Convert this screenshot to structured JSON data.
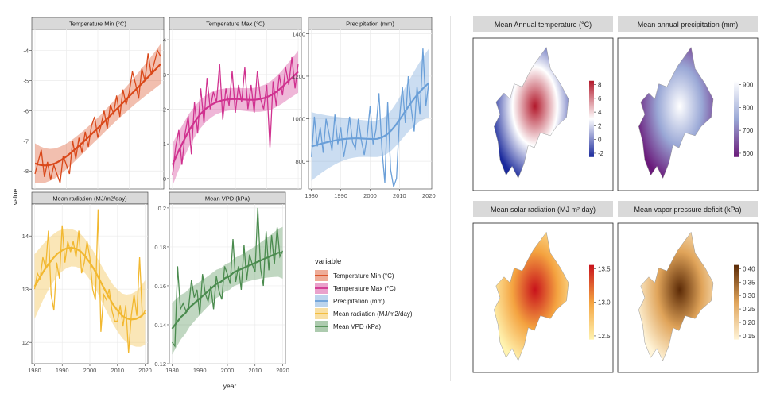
{
  "left_figure": {
    "ylabel": "value",
    "xlabel": "year",
    "legend_title": "variable"
  },
  "right_figure": {
    "maps": [
      {
        "title": "Mean Annual temperature (°C)",
        "palette": "blue-white-red",
        "colorbar_ticks": [
          "8",
          "6",
          "4",
          "2",
          "0",
          "-2"
        ]
      },
      {
        "title": "Mean annual precipitation (mm)",
        "palette": "purple-white",
        "colorbar_ticks": [
          "900",
          "800",
          "700",
          "600"
        ]
      },
      {
        "title": "Mean solar radiation (MJ m² day)",
        "palette": "yellow-red",
        "colorbar_ticks": [
          "13.5",
          "13.0",
          "12.5"
        ]
      },
      {
        "title": "Mean vapor pressure deficit (kPa)",
        "palette": "cream-brown",
        "colorbar_ticks": [
          "0.40",
          "0.35",
          "0.30",
          "0.25",
          "0.20",
          "0.15"
        ]
      }
    ]
  },
  "chart_data": [
    {
      "type": "line",
      "title": "Temperature Min (°C)",
      "color": "#d9481a",
      "xlim": [
        1979,
        2021
      ],
      "ylim": [
        -8.6,
        -3.3
      ],
      "yticks": [
        -8,
        -7,
        -6,
        -5,
        -4
      ],
      "xticks": [
        1980,
        1990,
        2000,
        2010,
        2020
      ],
      "x": [
        1980,
        1981,
        1982,
        1983,
        1984,
        1985,
        1986,
        1987,
        1988,
        1989,
        1990,
        1991,
        1992,
        1993,
        1994,
        1995,
        1996,
        1997,
        1998,
        1999,
        2000,
        2001,
        2002,
        2003,
        2004,
        2005,
        2006,
        2007,
        2008,
        2009,
        2010,
        2011,
        2012,
        2013,
        2014,
        2015,
        2016,
        2017,
        2018,
        2019,
        2020
      ],
      "y": [
        -8.1,
        -7.7,
        -7.3,
        -8.2,
        -7.7,
        -8.3,
        -7.8,
        -8.1,
        -8.4,
        -7.5,
        -7.8,
        -8.1,
        -7.0,
        -7.6,
        -6.9,
        -7.4,
        -6.7,
        -7.2,
        -6.5,
        -6.2,
        -6.9,
        -6.5,
        -6.0,
        -6.6,
        -5.8,
        -6.1,
        -5.5,
        -6.2,
        -5.3,
        -5.8,
        -5.4,
        -4.7,
        -5.1,
        -5.6,
        -4.6,
        -5.0,
        -4.1,
        -4.8,
        -4.4,
        -4.0,
        -4.2
      ],
      "smooth": [
        -7.75,
        -7.8,
        -7.82,
        -7.8,
        -7.75,
        -7.66,
        -7.55,
        -7.42,
        -7.28,
        -7.13,
        -6.98,
        -6.82,
        -6.66,
        -6.5,
        -6.33,
        -6.16,
        -5.99,
        -5.82,
        -5.65,
        -5.48,
        -5.31,
        -5.14,
        -4.97,
        -4.8,
        -4.63,
        -4.45
      ],
      "smooth_x": [
        1980,
        1981.6,
        1983.2,
        1984.8,
        1986.4,
        1988,
        1989.6,
        1991.2,
        1992.8,
        1994.4,
        1996,
        1997.6,
        1999.2,
        2000.8,
        2002.4,
        2004,
        2005.6,
        2007.2,
        2008.8,
        2010.4,
        2012,
        2013.6,
        2015.2,
        2016.8,
        2018.4,
        2020
      ],
      "band": 0.35
    },
    {
      "type": "line",
      "title": "Temperature Max (°C)",
      "color": "#d0318f",
      "xlim": [
        1979,
        2021
      ],
      "ylim": [
        -0.3,
        4.3
      ],
      "yticks": [
        0,
        1,
        2,
        3,
        4
      ],
      "xticks": [
        1980,
        1990,
        2000,
        2010,
        2020
      ],
      "x": [
        1980,
        1981,
        1982,
        1983,
        1984,
        1985,
        1986,
        1987,
        1988,
        1989,
        1990,
        1991,
        1992,
        1993,
        1994,
        1995,
        1996,
        1997,
        1998,
        1999,
        2000,
        2001,
        2002,
        2003,
        2004,
        2005,
        2006,
        2007,
        2008,
        2009,
        2010,
        2011,
        2012,
        2013,
        2014,
        2015,
        2016,
        2017,
        2018,
        2019,
        2020
      ],
      "y": [
        0.1,
        0.9,
        1.4,
        0.4,
        1.3,
        1.8,
        0.7,
        2.2,
        1.3,
        2.6,
        1.6,
        2.9,
        2.0,
        2.5,
        2.2,
        3.3,
        1.7,
        2.6,
        2.1,
        3.1,
        1.9,
        2.7,
        2.2,
        3.2,
        2.0,
        2.7,
        1.9,
        3.1,
        2.3,
        2.0,
        2.7,
        0.9,
        2.8,
        2.1,
        3.0,
        2.4,
        3.2,
        2.7,
        3.5,
        2.6,
        3.3
      ],
      "smooth": [
        0.4,
        0.75,
        1.08,
        1.38,
        1.63,
        1.84,
        2.0,
        2.12,
        2.2,
        2.25,
        2.28,
        2.29,
        2.29,
        2.28,
        2.27,
        2.27,
        2.29,
        2.33,
        2.4,
        2.5,
        2.63,
        2.78,
        2.93,
        3.08
      ],
      "smooth_x": [
        1980,
        1981.7,
        1983.5,
        1985.2,
        1987,
        1988.7,
        1990.4,
        1992.2,
        1993.9,
        1995.7,
        1997.4,
        1999.1,
        2000.9,
        2002.6,
        2004.3,
        2006.1,
        2007.8,
        2009.6,
        2011.3,
        2013,
        2014.8,
        2016.5,
        2018.3,
        2020
      ],
      "band": 0.32
    },
    {
      "type": "line",
      "title": "Precipitation (mm)",
      "color": "#6a9fd8",
      "xlim": [
        1979,
        2021
      ],
      "ylim": [
        670,
        1420
      ],
      "yticks": [
        800,
        1000,
        1200,
        1400
      ],
      "xticks": [
        1980,
        1990,
        2000,
        2010,
        2020
      ],
      "x": [
        1980,
        1981,
        1982,
        1983,
        1984,
        1985,
        1986,
        1987,
        1988,
        1989,
        1990,
        1991,
        1992,
        1993,
        1994,
        1995,
        1996,
        1997,
        1998,
        1999,
        2000,
        2001,
        2002,
        2003,
        2004,
        2005,
        2006,
        2007,
        2008,
        2009,
        2010,
        2011,
        2012,
        2013,
        2014,
        2015,
        2016,
        2017,
        2018,
        2019,
        2020
      ],
      "y": [
        820,
        1010,
        870,
        960,
        840,
        1000,
        930,
        850,
        1020,
        880,
        960,
        820,
        900,
        1010,
        890,
        860,
        1000,
        900,
        830,
        920,
        1060,
        880,
        950,
        1120,
        860,
        700,
        1080,
        760,
        680,
        720,
        1000,
        1150,
        980,
        1200,
        1050,
        940,
        1150,
        1020,
        1330,
        1060,
        1170
      ],
      "smooth": [
        870,
        876,
        882,
        888,
        893,
        898,
        902,
        905,
        907,
        908,
        908,
        907,
        906,
        905,
        906,
        912,
        925,
        945,
        972,
        1003,
        1036,
        1068,
        1098,
        1125,
        1148,
        1168
      ],
      "smooth_x": [
        1980,
        1981.6,
        1983.2,
        1984.8,
        1986.4,
        1988,
        1989.6,
        1991.2,
        1992.8,
        1994.4,
        1996,
        1997.6,
        1999.2,
        2000.8,
        2002.4,
        2004,
        2005.6,
        2007.2,
        2008.8,
        2010.4,
        2012,
        2013.6,
        2015.2,
        2016.8,
        2018.4,
        2020
      ],
      "band": 85
    },
    {
      "type": "line",
      "title": "Mean radiation (MJ/m2/day)",
      "color": "#f2b830",
      "xlim": [
        1979,
        2021
      ],
      "ylim": [
        11.6,
        14.6
      ],
      "yticks": [
        12,
        13,
        14
      ],
      "xticks": [
        1980,
        1990,
        2000,
        2010,
        2020
      ],
      "x": [
        1980,
        1981,
        1982,
        1983,
        1984,
        1985,
        1986,
        1987,
        1988,
        1989,
        1990,
        1991,
        1992,
        1993,
        1994,
        1995,
        1996,
        1997,
        1998,
        1999,
        2000,
        2001,
        2002,
        2003,
        2004,
        2005,
        2006,
        2007,
        2008,
        2009,
        2010,
        2011,
        2012,
        2013,
        2014,
        2015,
        2016,
        2017,
        2018,
        2019,
        2020
      ],
      "y": [
        13.0,
        13.3,
        13.2,
        13.6,
        13.4,
        14.1,
        12.9,
        12.6,
        13.5,
        13.2,
        14.2,
        13.5,
        13.9,
        13.7,
        13.9,
        13.6,
        14.1,
        13.3,
        13.5,
        13.9,
        13.6,
        13.0,
        12.8,
        14.5,
        12.2,
        12.9,
        12.8,
        13.0,
        12.6,
        12.4,
        12.4,
        12.7,
        12.3,
        12.7,
        11.8,
        12.5,
        12.9,
        12.5,
        13.6,
        12.5,
        12.6
      ],
      "smooth": [
        13.05,
        13.2,
        13.34,
        13.47,
        13.58,
        13.67,
        13.73,
        13.77,
        13.78,
        13.76,
        13.71,
        13.62,
        13.5,
        13.36,
        13.2,
        13.03,
        12.87,
        12.72,
        12.6,
        12.5,
        12.45,
        12.43,
        12.44,
        12.48,
        12.56
      ],
      "smooth_x": [
        1980,
        1981.7,
        1983.3,
        1985,
        1986.7,
        1988.3,
        1990,
        1991.7,
        1993.3,
        1995,
        1996.7,
        1998.3,
        2000,
        2001.7,
        2003.3,
        2005,
        2006.7,
        2008.3,
        2010,
        2011.7,
        2013.3,
        2015,
        2016.7,
        2018.3,
        2020
      ],
      "band": 0.32
    },
    {
      "type": "line",
      "title": "Mean VPD (kPa)",
      "color": "#4a8b4e",
      "xlim": [
        1979,
        2021
      ],
      "ylim": [
        0.12,
        0.202
      ],
      "yticks": [
        0.12,
        0.14,
        0.16,
        0.18,
        0.2
      ],
      "xticks": [
        1980,
        1990,
        2000,
        2010,
        2020
      ],
      "x": [
        1980,
        1981,
        1982,
        1983,
        1984,
        1985,
        1986,
        1987,
        1988,
        1989,
        1990,
        1991,
        1992,
        1993,
        1994,
        1995,
        1996,
        1997,
        1998,
        1999,
        2000,
        2001,
        2002,
        2003,
        2004,
        2005,
        2006,
        2007,
        2008,
        2009,
        2010,
        2011,
        2012,
        2013,
        2014,
        2015,
        2016,
        2017,
        2018,
        2019,
        2020
      ],
      "y": [
        0.131,
        0.129,
        0.17,
        0.148,
        0.151,
        0.147,
        0.149,
        0.163,
        0.154,
        0.158,
        0.145,
        0.166,
        0.156,
        0.152,
        0.16,
        0.148,
        0.165,
        0.157,
        0.153,
        0.17,
        0.166,
        0.161,
        0.184,
        0.162,
        0.17,
        0.158,
        0.181,
        0.163,
        0.176,
        0.171,
        0.167,
        0.2,
        0.169,
        0.16,
        0.188,
        0.168,
        0.186,
        0.171,
        0.19,
        0.175,
        0.178
      ],
      "smooth": [
        0.138,
        0.141,
        0.144,
        0.146,
        0.149,
        0.151,
        0.153,
        0.155,
        0.157,
        0.159,
        0.161,
        0.162,
        0.164,
        0.165,
        0.167,
        0.168,
        0.169,
        0.17,
        0.171,
        0.172,
        0.173,
        0.174,
        0.175,
        0.176,
        0.177,
        0.177
      ],
      "smooth_x": [
        1980,
        1981.6,
        1983.2,
        1984.8,
        1986.4,
        1988,
        1989.6,
        1991.2,
        1992.8,
        1994.4,
        1996,
        1997.6,
        1999.2,
        2000.8,
        2002.4,
        2004,
        2005.6,
        2007.2,
        2008.8,
        2010.4,
        2012,
        2013.6,
        2015.2,
        2016.8,
        2018.4,
        2020
      ],
      "band": 0.007
    }
  ]
}
